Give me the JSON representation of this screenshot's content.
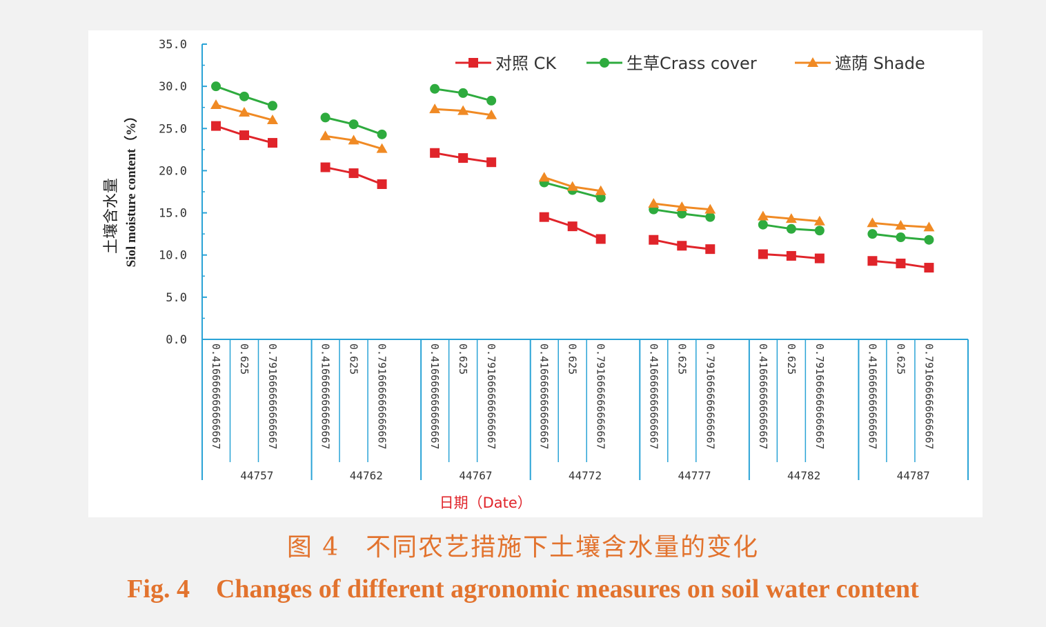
{
  "colors": {
    "axis": "#29a3d6",
    "ck": "#e0242a",
    "grass": "#2eab3e",
    "shade": "#f08a24",
    "caption": "#e2732e",
    "tick_text": "#333333"
  },
  "figure": {
    "caption_cn": "图 4　不同农艺措施下土壤含水量的变化",
    "caption_en": "Fig. 4    Changes of different agronomic measures on soil water content"
  },
  "chart_data": {
    "type": "line",
    "ylabel_cn": "土壤含水量",
    "ylabel_en": "Siol moisture content（%）",
    "xlabel": "日期（Date）",
    "ylim": [
      0,
      35
    ],
    "yticks": [
      "0.0",
      "5.0",
      "10.0",
      "15.0",
      "20.0",
      "25.0",
      "30.0",
      "35.0"
    ],
    "legend_position": "top-right",
    "groups": [
      "44757",
      "44762",
      "44767",
      "44772",
      "44777",
      "44782",
      "44787"
    ],
    "sub_categories": [
      "0.416666666666667",
      "0.625",
      "0.791666666666667"
    ],
    "series": [
      {
        "name": "对照 CK",
        "marker": "square",
        "values": [
          [
            25.3,
            24.2,
            23.3
          ],
          [
            20.4,
            19.7,
            18.4
          ],
          [
            22.1,
            21.5,
            21.0
          ],
          [
            14.5,
            13.4,
            11.9
          ],
          [
            11.8,
            11.1,
            10.7
          ],
          [
            10.1,
            9.9,
            9.6
          ],
          [
            9.3,
            9.0,
            8.5
          ]
        ]
      },
      {
        "name": "生草Crass cover",
        "marker": "circle",
        "values": [
          [
            30.0,
            28.8,
            27.7
          ],
          [
            26.3,
            25.5,
            24.3
          ],
          [
            29.7,
            29.2,
            28.3
          ],
          [
            18.6,
            17.7,
            16.8
          ],
          [
            15.4,
            14.9,
            14.5
          ],
          [
            13.6,
            13.1,
            12.9
          ],
          [
            12.5,
            12.1,
            11.8
          ]
        ]
      },
      {
        "name": "遮荫 Shade",
        "marker": "triangle",
        "values": [
          [
            27.8,
            26.9,
            26.0
          ],
          [
            24.1,
            23.6,
            22.6
          ],
          [
            27.3,
            27.1,
            26.6
          ],
          [
            19.2,
            18.1,
            17.6
          ],
          [
            16.1,
            15.7,
            15.4
          ],
          [
            14.6,
            14.3,
            14.0
          ],
          [
            13.8,
            13.5,
            13.3
          ]
        ]
      }
    ]
  }
}
